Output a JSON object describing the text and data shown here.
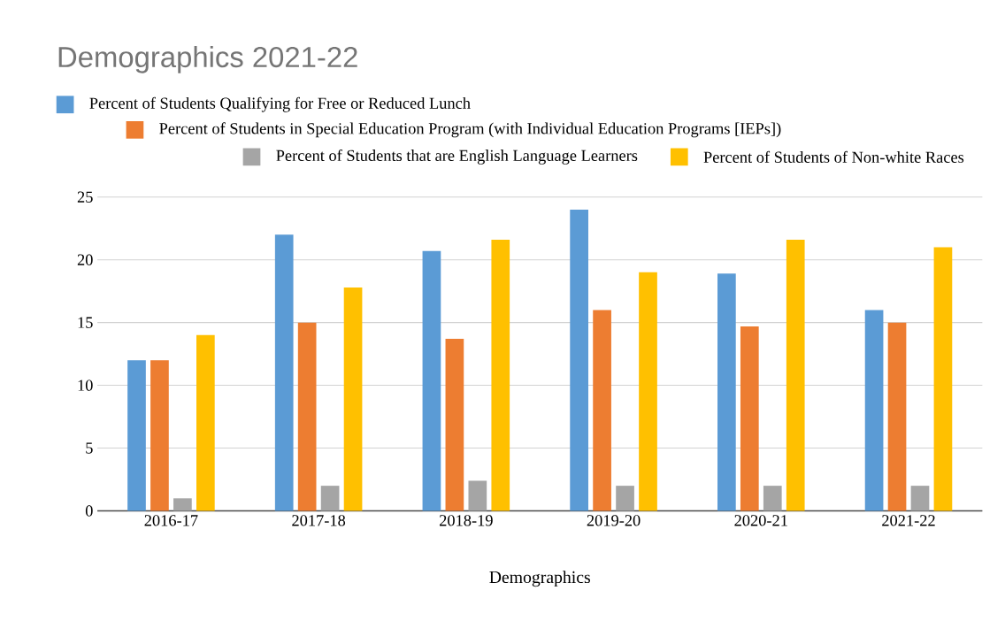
{
  "chart_data": {
    "type": "bar",
    "title": "Demographics 2021-22",
    "xlabel": "Demographics",
    "categories": [
      "2016-17",
      "2017-18",
      "2018-19",
      "2019-20",
      "2020-21",
      "2021-22"
    ],
    "series": [
      {
        "name": "Percent of Students Qualifying for Free or Reduced Lunch",
        "color": "#5b9bd5",
        "values": [
          12,
          22,
          20.7,
          24,
          18.9,
          16
        ]
      },
      {
        "name": "Percent of Students in Special Education Program (with Individual Education Programs [IEPs])",
        "color": "#ed7d31",
        "values": [
          12,
          15,
          13.7,
          16,
          14.7,
          15
        ]
      },
      {
        "name": "Percent of Students that are English Language Learners",
        "color": "#a5a5a5",
        "values": [
          1,
          2,
          2.4,
          2,
          2,
          2
        ]
      },
      {
        "name": "Percent of Students of Non-white Races",
        "color": "#ffc000",
        "values": [
          14,
          17.8,
          21.6,
          19,
          21.6,
          21
        ]
      }
    ],
    "ylim": [
      0,
      25
    ],
    "yticks": [
      0,
      5,
      10,
      15,
      20,
      25
    ],
    "grid": "y",
    "legend": "top"
  }
}
